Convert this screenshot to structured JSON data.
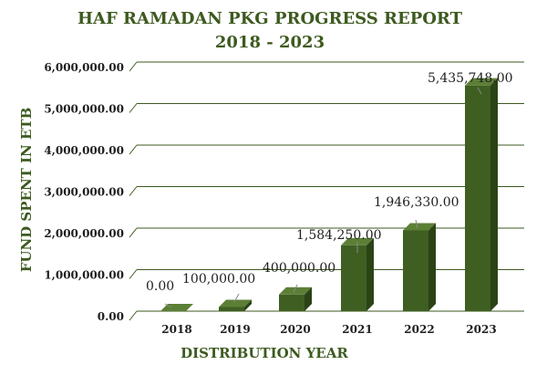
{
  "chart_data": {
    "type": "bar",
    "title": "HAF RAMADAN PKG PROGRESS REPORT",
    "subtitle": "2018 - 2023",
    "xlabel": "DISTRIBUTION YEAR",
    "ylabel": "FUND SPENT IN ETB",
    "categories": [
      "2018",
      "2019",
      "2020",
      "2021",
      "2022",
      "2023"
    ],
    "values": [
      0,
      100000,
      400000,
      1584250,
      1946330,
      5435748
    ],
    "data_labels": [
      "0.00",
      "100,000.00",
      "400,000.00",
      "1,584,250.00",
      "1,946,330.00",
      "5,435,748.00"
    ],
    "y_ticks": [
      0,
      1000000,
      2000000,
      3000000,
      4000000,
      5000000,
      6000000
    ],
    "y_tick_labels": [
      "0.00",
      "1,000,000.00",
      "2,000,000.00",
      "3,000,000.00",
      "4,000,000.00",
      "5,000,000.00",
      "6,000,000.00"
    ],
    "ylim": [
      0,
      6000000
    ],
    "grid": true,
    "legend": "none",
    "colors": {
      "bar_front": "#3f5f22",
      "bar_side": "#2b4316",
      "bar_top": "#5c7f36",
      "title": "#3d5a1f",
      "gridline": "#3d5a1f",
      "text": "#1e1e1e"
    }
  }
}
